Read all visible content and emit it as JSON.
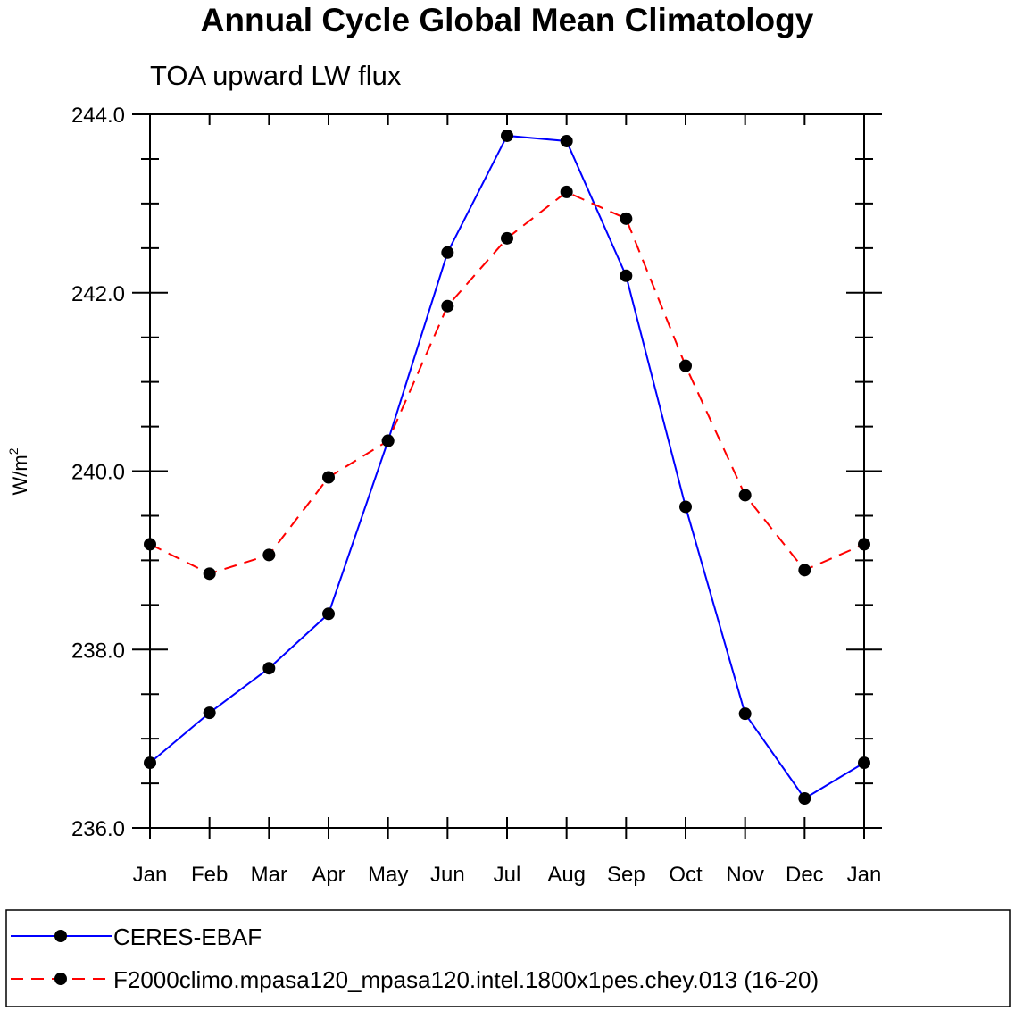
{
  "chart_data": {
    "type": "line",
    "title": "Annual Cycle Global Mean Climatology",
    "subtitle": "TOA upward LW flux",
    "xlabel": "",
    "ylabel": "W/m",
    "ylabel_sup": "2",
    "categories": [
      "Jan",
      "Feb",
      "Mar",
      "Apr",
      "May",
      "Jun",
      "Jul",
      "Aug",
      "Sep",
      "Oct",
      "Nov",
      "Dec",
      "Jan"
    ],
    "ylim": [
      236.0,
      244.0
    ],
    "y_ticks": [
      "236.0",
      "238.0",
      "240.0",
      "242.0",
      "244.0"
    ],
    "y_tick_values": [
      236.0,
      238.0,
      240.0,
      242.0,
      244.0
    ],
    "grid": false,
    "legend_position": "bottom",
    "series": [
      {
        "name": "CERES-EBAF",
        "color": "#0000ff",
        "style": "solid",
        "marker": "filled-circle",
        "values": [
          236.73,
          237.29,
          237.79,
          238.4,
          240.34,
          242.45,
          243.76,
          243.7,
          242.19,
          239.6,
          237.28,
          236.33,
          236.73
        ]
      },
      {
        "name": "F2000climo.mpasa120_mpasa120.intel.1800x1pes.chey.013 (16-20)",
        "color": "#ff0000",
        "style": "dashed",
        "marker": "filled-circle",
        "values": [
          239.18,
          238.85,
          239.06,
          239.93,
          240.34,
          241.85,
          242.61,
          243.13,
          242.83,
          241.18,
          239.73,
          238.89,
          239.18
        ]
      }
    ]
  }
}
